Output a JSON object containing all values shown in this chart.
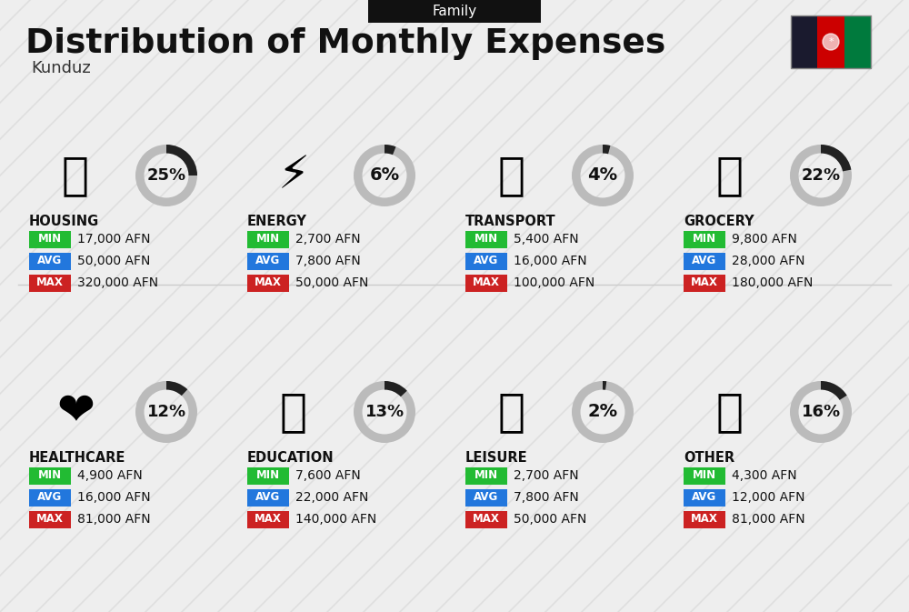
{
  "title": "Distribution of Monthly Expenses",
  "subtitle": "Family",
  "location": "Kunduz",
  "background_color": "#eeeeee",
  "categories": [
    {
      "name": "HOUSING",
      "percent": 25,
      "min": "17,000 AFN",
      "avg": "50,000 AFN",
      "max": "320,000 AFN",
      "row": 0,
      "col": 0
    },
    {
      "name": "ENERGY",
      "percent": 6,
      "min": "2,700 AFN",
      "avg": "7,800 AFN",
      "max": "50,000 AFN",
      "row": 0,
      "col": 1
    },
    {
      "name": "TRANSPORT",
      "percent": 4,
      "min": "5,400 AFN",
      "avg": "16,000 AFN",
      "max": "100,000 AFN",
      "row": 0,
      "col": 2
    },
    {
      "name": "GROCERY",
      "percent": 22,
      "min": "9,800 AFN",
      "avg": "28,000 AFN",
      "max": "180,000 AFN",
      "row": 0,
      "col": 3
    },
    {
      "name": "HEALTHCARE",
      "percent": 12,
      "min": "4,900 AFN",
      "avg": "16,000 AFN",
      "max": "81,000 AFN",
      "row": 1,
      "col": 0
    },
    {
      "name": "EDUCATION",
      "percent": 13,
      "min": "7,600 AFN",
      "avg": "22,000 AFN",
      "max": "140,000 AFN",
      "row": 1,
      "col": 1
    },
    {
      "name": "LEISURE",
      "percent": 2,
      "min": "2,700 AFN",
      "avg": "7,800 AFN",
      "max": "50,000 AFN",
      "row": 1,
      "col": 2
    },
    {
      "name": "OTHER",
      "percent": 16,
      "min": "4,300 AFN",
      "avg": "12,000 AFN",
      "max": "81,000 AFN",
      "row": 1,
      "col": 3
    }
  ],
  "min_color": "#22bb33",
  "avg_color": "#2277dd",
  "max_color": "#cc2222",
  "ring_color": "#222222",
  "ring_bg_color": "#bbbbbb",
  "category_label_color": "#111111",
  "value_text_color": "#111111",
  "flag_black": "#1a1a2e",
  "flag_red": "#cc0000",
  "flag_green": "#007a3d"
}
